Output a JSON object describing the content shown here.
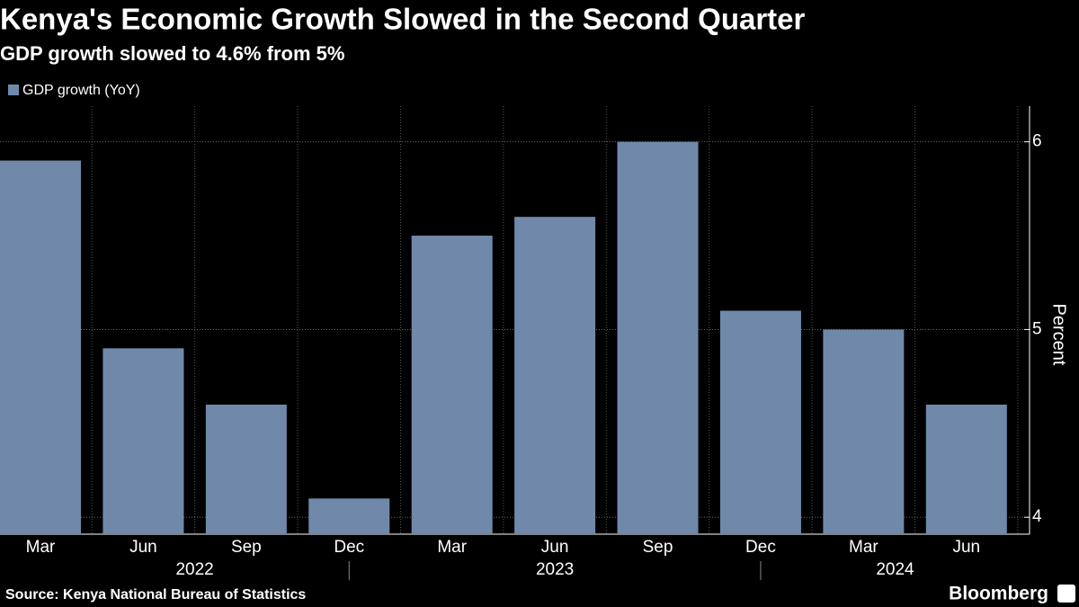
{
  "chart_data": {
    "type": "bar",
    "title": "Kenya's Economic Growth Slowed in the Second Quarter",
    "subtitle": "GDP growth slowed to 4.6% from 5%",
    "categories": [
      "Mar",
      "Jun",
      "Sep",
      "Dec",
      "Mar",
      "Jun",
      "Sep",
      "Dec",
      "Mar",
      "Jun"
    ],
    "years": [
      "2022",
      "2023",
      "2024"
    ],
    "series": [
      {
        "name": "GDP growth (YoY)",
        "color": "#7089ab",
        "values": [
          5.9,
          4.9,
          4.6,
          4.1,
          5.5,
          5.6,
          6.0,
          5.1,
          5.0,
          4.6
        ]
      }
    ],
    "ylim": [
      3.91,
      6.19
    ],
    "yticks": [
      4,
      5,
      6
    ],
    "y_axis_label": "Percent",
    "y_axis_side": "right",
    "grid": true,
    "source": "Source: Kenya National Bureau of Statistics",
    "brand": "Bloomberg"
  }
}
